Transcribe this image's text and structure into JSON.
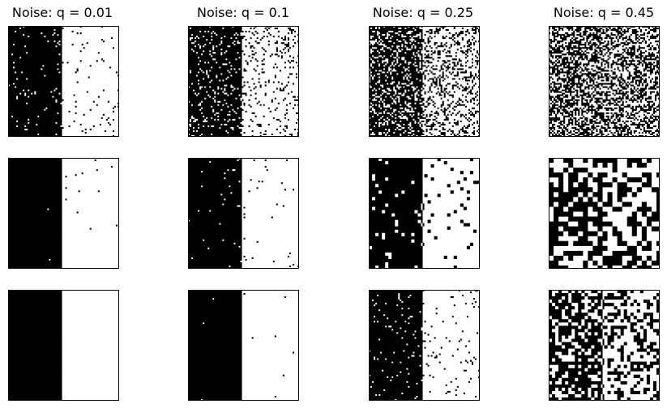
{
  "chart_data": {
    "type": "heatmap",
    "description_free": true,
    "grid_size": [
      68,
      68
    ],
    "stripe_split_fraction": 0.49,
    "left_value": "black",
    "right_value": "white",
    "columns": [
      {
        "title": "Noise: q = 0.01",
        "q": 0.01,
        "rows": [
          {
            "stage": "noisy",
            "flip_rate": 0.035,
            "patch": 1
          },
          {
            "stage": "denoised_a",
            "flip_rate": 0.004,
            "patch": 1
          },
          {
            "stage": "denoised_b",
            "flip_rate": 0.0,
            "patch": 1
          }
        ]
      },
      {
        "title": "Noise: q = 0.1",
        "q": 0.1,
        "rows": [
          {
            "stage": "noisy",
            "flip_rate": 0.12,
            "patch": 1
          },
          {
            "stage": "denoised_a",
            "flip_rate": 0.012,
            "patch": 1
          },
          {
            "stage": "denoised_b",
            "flip_rate": 0.002,
            "patch": 1
          }
        ]
      },
      {
        "title": "Noise: q = 0.25",
        "q": 0.25,
        "rows": [
          {
            "stage": "noisy",
            "flip_rate": 0.27,
            "patch": 1
          },
          {
            "stage": "denoised_a",
            "flip_rate": 0.07,
            "patch": 2
          },
          {
            "stage": "denoised_b",
            "flip_rate": 0.035,
            "patch": 1
          }
        ]
      },
      {
        "title": "Noise: q = 0.45",
        "q": 0.45,
        "rows": [
          {
            "stage": "noisy",
            "flip_rate": 0.45,
            "patch": 1
          },
          {
            "stage": "denoised_a",
            "flip_rate": 0.42,
            "patch": 3
          },
          {
            "stage": "denoised_b",
            "flip_rate": 0.33,
            "patch": 2
          }
        ]
      }
    ],
    "xlabel": "",
    "ylabel": "",
    "axes_ticks": false
  }
}
